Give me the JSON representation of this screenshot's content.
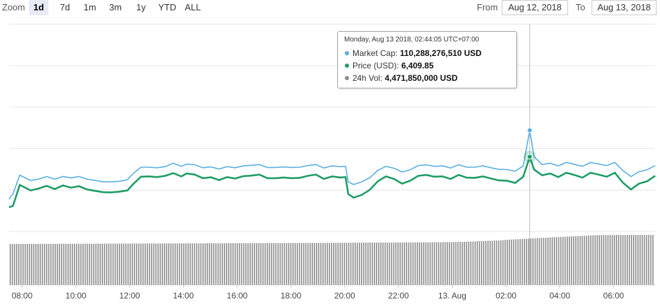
{
  "toolbar": {
    "zoom_label": "Zoom",
    "zoom_buttons": [
      "1d",
      "7d",
      "1m",
      "3m",
      "1y",
      "YTD",
      "ALL"
    ],
    "active_zoom": "1d",
    "from_label": "From",
    "from_value": "Aug 12, 2018",
    "to_label": "To",
    "to_value": "Aug 13, 2018"
  },
  "tooltip": {
    "title": "Monday, Aug 13 2018, 02:44:05 UTC+07:00",
    "market_cap_label": "Market Cap:",
    "market_cap_value": "110,288,276,510 USD",
    "price_label": "Price (USD):",
    "price_value": "6,409.85",
    "volume_label": "24h Vol:",
    "volume_value": "4,471,850,000 USD"
  },
  "colors": {
    "price": "#1f9c66",
    "market_cap": "#5aaee0",
    "volume": "#8a8a8a",
    "grid": "#e6e6e6",
    "crosshair": "#c0c0c0"
  },
  "chart_data": {
    "type": "line",
    "xlabel": "",
    "ylabel": "",
    "x_ticks": [
      "08:00",
      "10:00",
      "12:00",
      "14:00",
      "16:00",
      "18:00",
      "20:00",
      "22:00",
      "13. Aug",
      "02:00",
      "04:00",
      "06:00"
    ],
    "grid": true,
    "legend": "none",
    "time_hours": [
      7.4,
      7.55,
      7.8,
      8.0,
      8.2,
      8.5,
      8.8,
      9.1,
      9.4,
      9.7,
      10.0,
      10.3,
      10.6,
      10.9,
      11.2,
      11.5,
      11.8,
      12.0,
      12.3,
      12.6,
      12.9,
      13.2,
      13.5,
      13.8,
      14.0,
      14.3,
      14.6,
      14.9,
      15.2,
      15.5,
      15.8,
      16.1,
      16.4,
      16.7,
      17.0,
      17.3,
      17.6,
      17.9,
      18.2,
      18.5,
      18.8,
      19.1,
      19.4,
      19.7,
      19.9,
      20.0,
      20.2,
      20.5,
      20.8,
      21.1,
      21.4,
      21.7,
      22.0,
      22.3,
      22.6,
      22.9,
      23.2,
      23.5,
      23.8,
      24.1,
      24.4,
      24.7,
      25.0,
      25.3,
      25.6,
      25.9,
      26.2,
      26.5,
      26.74,
      26.9,
      27.2,
      27.5,
      27.8,
      28.1,
      28.4,
      28.7,
      29.0,
      29.3,
      29.6,
      29.9,
      30.2,
      30.5,
      30.8,
      31.1,
      31.4
    ],
    "series": [
      {
        "name": "Price (USD)",
        "values": [
          6132,
          6140,
          6255,
          6240,
          6225,
          6235,
          6250,
          6232,
          6252,
          6240,
          6248,
          6230,
          6222,
          6215,
          6214,
          6218,
          6225,
          6258,
          6300,
          6302,
          6298,
          6305,
          6320,
          6302,
          6318,
          6312,
          6292,
          6297,
          6282,
          6298,
          6290,
          6303,
          6306,
          6312,
          6292,
          6292,
          6296,
          6292,
          6294,
          6305,
          6312,
          6288,
          6302,
          6296,
          6298,
          6205,
          6185,
          6200,
          6228,
          6275,
          6302,
          6288,
          6262,
          6278,
          6305,
          6310,
          6300,
          6302,
          6288,
          6310,
          6295,
          6294,
          6302,
          6290,
          6280,
          6278,
          6266,
          6300,
          6409.85,
          6340,
          6308,
          6318,
          6298,
          6322,
          6310,
          6295,
          6322,
          6312,
          6300,
          6322,
          6268,
          6230,
          6262,
          6275,
          6305
        ]
      },
      {
        "name": "Market Cap",
        "values": [
          107700000000,
          107900000000,
          108600000000,
          108500000000,
          108400000000,
          108450000000,
          108550000000,
          108450000000,
          108550000000,
          108500000000,
          108550000000,
          108450000000,
          108400000000,
          108350000000,
          108350000000,
          108370000000,
          108430000000,
          108650000000,
          108900000000,
          108900000000,
          108880000000,
          108920000000,
          109050000000,
          108930000000,
          109020000000,
          108990000000,
          108880000000,
          108910000000,
          108830000000,
          108920000000,
          108880000000,
          108950000000,
          108970000000,
          109000000000,
          108890000000,
          108890000000,
          108910000000,
          108890000000,
          108900000000,
          108960000000,
          109000000000,
          108870000000,
          108950000000,
          108920000000,
          108930000000,
          108350000000,
          108250000000,
          108350000000,
          108500000000,
          108780000000,
          108930000000,
          108860000000,
          108720000000,
          108800000000,
          108960000000,
          108990000000,
          108930000000,
          108950000000,
          108870000000,
          108990000000,
          108900000000,
          108900000000,
          108950000000,
          108880000000,
          108820000000,
          108810000000,
          108750000000,
          108950000000,
          110288276510,
          109300000000,
          109000000000,
          109050000000,
          108950000000,
          109080000000,
          109010000000,
          108930000000,
          109080000000,
          109020000000,
          108960000000,
          109080000000,
          108780000000,
          108550000000,
          108730000000,
          108800000000,
          108960000000
        ]
      },
      {
        "name": "24h Vol",
        "values": [
          3950000000,
          3950000000,
          3950000000,
          3952000000,
          3955000000,
          3958000000,
          3960000000,
          3962000000,
          3965000000,
          3968000000,
          3970000000,
          3972000000,
          3975000000,
          3978000000,
          3980000000,
          3982000000,
          3985000000,
          3988000000,
          3990000000,
          3992000000,
          3995000000,
          3998000000,
          4000000000,
          4002000000,
          4005000000,
          4008000000,
          4010000000,
          4012000000,
          4015000000,
          4018000000,
          4020000000,
          4022000000,
          4025000000,
          4028000000,
          4030000000,
          4032000000,
          4035000000,
          4038000000,
          4040000000,
          4045000000,
          4050000000,
          4055000000,
          4060000000,
          4065000000,
          4068000000,
          4070000000,
          4072000000,
          4075000000,
          4078000000,
          4080000000,
          4082000000,
          4085000000,
          4090000000,
          4095000000,
          4100000000,
          4105000000,
          4110000000,
          4120000000,
          4130000000,
          4150000000,
          4170000000,
          4200000000,
          4230000000,
          4260000000,
          4300000000,
          4350000000,
          4400000000,
          4440000000,
          4471850000,
          4500000000,
          4540000000,
          4580000000,
          4620000000,
          4660000000,
          4700000000,
          4740000000,
          4780000000,
          4800000000,
          4810000000,
          4815000000,
          4820000000,
          4820000000,
          4822000000,
          4825000000,
          4825000000
        ]
      }
    ],
    "crosshair_time": 26.74
  }
}
